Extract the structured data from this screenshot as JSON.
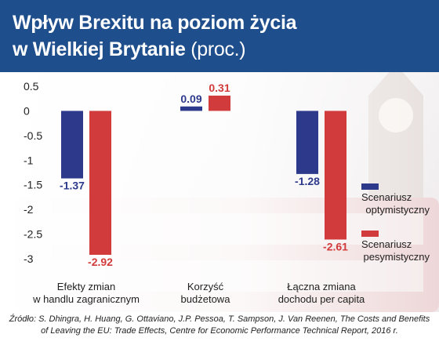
{
  "header": {
    "title_line1": "Wpływ Brexitu na poziom życia",
    "title_line2_bold": "w Wielkiej Brytanie",
    "title_line2_thin": "(proc.)"
  },
  "source": {
    "line1": "Źródło: S. Dhingra, H. Huang, G. Ottaviano, J.P. Pessoa, T. Sampson, J. Van Reenen, The Costs and Benefits",
    "line2": "of Leaving the EU: Trade Effects, Centre for Economic Performance Technical Report, 2016 r."
  },
  "colors": {
    "header_bg": "#1f4e8c",
    "optimistic": "#2d3a8c",
    "pessimistic": "#d23b3b"
  },
  "chart_data": {
    "type": "bar",
    "title": "Wpływ Brexitu na poziom życia w Wielkiej Brytanie (proc.)",
    "xlabel": "",
    "ylabel": "",
    "ylim": [
      -3,
      0.5
    ],
    "yticks": [
      "0.5",
      "0",
      "-0.5",
      "-1",
      "-1.5",
      "-2",
      "-2.5",
      "-3"
    ],
    "categories": [
      [
        "Efekty zmian",
        "w handlu zagranicznym"
      ],
      [
        "Korzyść",
        "budżetowa"
      ],
      [
        "Łączna zmiana",
        "dochodu per capita"
      ]
    ],
    "series": [
      {
        "name": "Scenariusz optymistyczny",
        "legend_lines": [
          "Scenariusz",
          "optymistyczny"
        ],
        "values": [
          -1.37,
          0.09,
          -1.28
        ],
        "labels": [
          "-1.37",
          "0.09",
          "-1.28"
        ],
        "color": "#2d3a8c"
      },
      {
        "name": "Scenariusz pesymistyczny",
        "legend_lines": [
          "Scenariusz",
          "pesymistyczny"
        ],
        "values": [
          -2.92,
          0.31,
          -2.61
        ],
        "labels": [
          "-2.92",
          "0.31",
          "-2.61"
        ],
        "color": "#d23b3b"
      }
    ],
    "legend_position": "right",
    "grid": false
  }
}
